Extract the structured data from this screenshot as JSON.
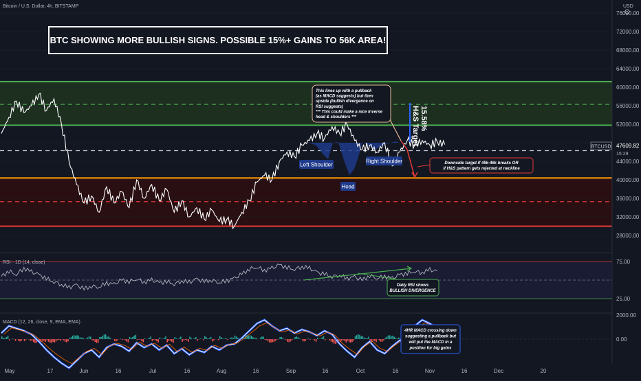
{
  "header": {
    "symbol_line": "Bitcoin / U.S. Dollar, 4h, BITSTAMP",
    "currency": "USD"
  },
  "headline": "BTC SHOWING MORE BULLISH SIGNS. POSSIBLE 15%+ GAINS TO 56K AREA!",
  "colors": {
    "background": "#131722",
    "price_line": "#ffffff",
    "green_band": "#1f3320",
    "green_line": "#4caf50",
    "red_band": "#2a0e12",
    "red_line": "#e53935",
    "orange_line": "#ff9800",
    "pattern_blue": "#1e3a8a",
    "macd_line": "#2962ff",
    "grid": "#1e222d"
  },
  "price_tag": {
    "symbol": "BTCUSD",
    "price": "47609.82",
    "countdown": "15:29"
  },
  "chart_data": [
    {
      "type": "line",
      "title": "",
      "series": [
        {
          "name": "",
          "x": [
            0,
            2,
            4,
            6,
            8,
            10,
            12,
            14,
            16,
            18,
            20,
            22,
            24,
            26,
            28,
            30,
            32,
            34,
            36,
            38,
            40,
            42,
            44,
            46,
            48,
            50,
            52,
            54,
            56,
            58,
            60,
            62,
            64,
            66,
            68,
            70,
            72,
            74,
            76,
            78,
            80,
            82,
            84,
            86,
            88,
            90,
            92,
            94,
            96,
            98,
            100,
            102,
            104,
            106,
            108,
            110,
            112,
            114,
            116,
            118,
            120,
            122,
            124,
            126,
            128,
            130,
            132,
            134,
            136,
            138,
            140,
            142,
            144,
            146,
            148,
            150,
            152,
            154,
            156,
            158
          ],
          "values": [
            50000,
            53500,
            57000,
            54500,
            56000,
            58500,
            55000,
            57500,
            52000,
            44000,
            39000,
            35000,
            36500,
            33000,
            38500,
            35000,
            37500,
            34000,
            40000,
            36000,
            39000,
            35500,
            38000,
            33000,
            35500,
            32000,
            34000,
            31500,
            33500,
            31000,
            31500,
            30000,
            33000,
            35500,
            39500,
            41000,
            40000,
            44000,
            46000,
            45000,
            47500,
            48500,
            50000,
            49000,
            51500,
            50000,
            52000,
            48500,
            46500,
            47500,
            46000,
            48000,
            43000,
            46000,
            48500,
            47500,
            48500,
            47500,
            48200,
            47609.82,
            null,
            null,
            null,
            null,
            null,
            null,
            null,
            null,
            null,
            null,
            null,
            null,
            null,
            null,
            null,
            null,
            null,
            null,
            null,
            null
          ]
        }
      ],
      "ylim": [
        27000,
        78000
      ],
      "y_ticks": [
        "76000.00",
        "72000.00",
        "68000.00",
        "64000.00",
        "60000.00",
        "56000.00",
        "52000.00",
        "48000.00",
        "44000.00",
        "40000.00",
        "36000.00",
        "32000.00",
        "28000.00"
      ],
      "x_ticks": [
        "May",
        "17",
        "Jun",
        "16",
        "Jul",
        "16",
        "Aug",
        "16",
        "Sep",
        "16",
        "Oct",
        "16",
        "Nov",
        "16",
        "Dec",
        "20"
      ],
      "levels": [
        {
          "value": 61200,
          "style": "solid",
          "color": "green"
        },
        {
          "value": 56300,
          "style": "dashed",
          "color": "green"
        },
        {
          "value": 51800,
          "style": "solid",
          "color": "green"
        },
        {
          "value": 46300,
          "style": "dashed",
          "color": "white"
        },
        {
          "value": 40400,
          "style": "solid",
          "color": "orange"
        },
        {
          "value": 35300,
          "style": "dashed",
          "color": "red"
        },
        {
          "value": 30000,
          "style": "solid",
          "color": "red"
        }
      ],
      "annotations": {
        "left_shoulder": "Left Shoulder",
        "head": "Head",
        "right_shoulder": "Right Shoulder",
        "target_label": "H&S Target",
        "target_pct": "15.58%",
        "pullback_note": [
          "This lines up with a pullback",
          "(as MACD suggests) but then",
          "upside (bullish divergence on",
          "RSI suggests)",
          "*** This could make a nice inverse",
          "head & shoulders ***"
        ],
        "downside_note": [
          "Downside target if 45k-46k breaks OR",
          "if H&S pattern gets rejected at neckline"
        ]
      }
    },
    {
      "type": "line",
      "title": "RSI · 1D (14, close)",
      "ylim": [
        0,
        100
      ],
      "y_ticks": [
        "75.00",
        "25.00"
      ],
      "series": [
        {
          "name": "",
          "values": [
            55,
            62,
            58,
            66,
            61,
            57,
            52,
            48,
            44,
            40,
            43,
            38,
            42,
            41,
            46,
            44,
            50,
            48,
            52,
            47,
            50,
            46,
            48,
            45,
            49,
            47,
            51,
            48,
            50,
            47,
            49,
            52,
            58,
            65,
            68,
            63,
            66,
            70,
            67,
            65,
            68,
            66,
            60,
            58,
            55,
            57,
            52,
            54,
            50,
            56,
            53,
            55,
            52,
            57,
            59,
            62,
            60,
            64,
            61,
            null,
            null,
            null,
            null,
            null,
            null,
            null,
            null,
            null,
            null,
            null,
            null,
            null,
            null,
            null,
            null,
            null,
            null,
            null,
            null,
            null
          ]
        }
      ],
      "annotation": [
        "Daily RSI shows",
        "BULLISH DIVERGENCE"
      ]
    },
    {
      "type": "line",
      "title": "MACD (12, 26, close, 9, EMA, EMA)",
      "ylim": [
        -3200,
        2400
      ],
      "y_ticks": [
        "2000.00",
        "0.00"
      ],
      "series": [
        {
          "name": "",
          "values": [
            500,
            1100,
            900,
            700,
            400,
            -200,
            -900,
            -1500,
            -2000,
            -2400,
            -1800,
            -1200,
            -900,
            -1500,
            -700,
            -400,
            -600,
            -1000,
            -300,
            -700,
            -400,
            -900,
            -500,
            -1200,
            -800,
            -1300,
            -900,
            -1100,
            -600,
            -900,
            -500,
            -400,
            100,
            700,
            1300,
            1600,
            1100,
            700,
            900,
            500,
            800,
            600,
            300,
            700,
            400,
            -400,
            -1000,
            -1500,
            -700,
            -200,
            -900,
            -1200,
            -600,
            -100,
            300,
            1100,
            1600,
            1300,
            900,
            null,
            null,
            null,
            null,
            null,
            null,
            null,
            null,
            null,
            null,
            null,
            null,
            null,
            null,
            null,
            null,
            null,
            null,
            null,
            null,
            null
          ]
        }
      ],
      "annotation": [
        "4HR MACD crossing down",
        "suggesting a pullback but",
        "will put the MACD in a",
        "position for big gains"
      ]
    }
  ]
}
